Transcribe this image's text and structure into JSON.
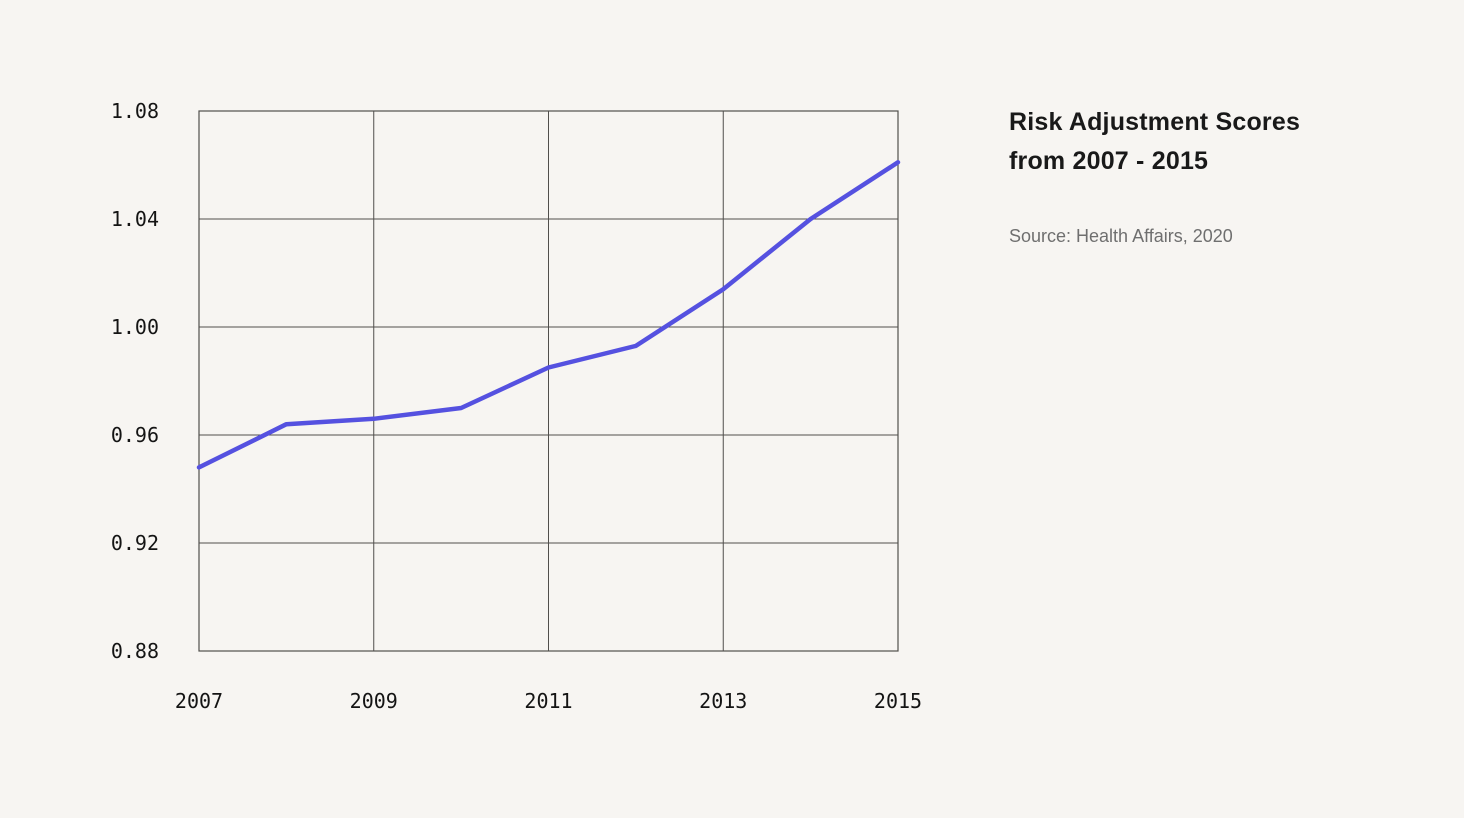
{
  "page": {
    "background_color": "#f7f5f2"
  },
  "caption": {
    "title": "Risk Adjustment Scores from 2007 - 2015",
    "source": "Source: Health Affairs, 2020",
    "title_color": "#191919",
    "source_color": "#6f6f6f"
  },
  "chart_data": {
    "type": "line",
    "title": "Risk Adjustment Scores from 2007 - 2015",
    "series": [
      {
        "name": "Risk Adjustment Score",
        "x": [
          2007,
          2008,
          2009,
          2010,
          2011,
          2012,
          2013,
          2014,
          2015
        ],
        "values": [
          0.948,
          0.964,
          0.966,
          0.97,
          0.985,
          0.993,
          1.014,
          1.04,
          1.061
        ]
      }
    ],
    "xlabel": "",
    "ylabel": "",
    "xlim": [
      2007,
      2015
    ],
    "ylim": [
      0.88,
      1.08
    ],
    "xticks": [
      2007,
      2009,
      2011,
      2013,
      2015
    ],
    "xtick_labels": [
      "2007",
      "2009",
      "2011",
      "2013",
      "2015"
    ],
    "yticks": [
      0.88,
      0.92,
      0.96,
      1.0,
      1.04,
      1.08
    ],
    "ytick_labels": [
      "0.88",
      "0.92",
      "0.96",
      "1.00",
      "1.04",
      "1.08"
    ],
    "grid": true,
    "legend_position": "none",
    "line_color": "#5551e0",
    "grid_color": "#514f4c",
    "tick_label_color": "#141414"
  }
}
